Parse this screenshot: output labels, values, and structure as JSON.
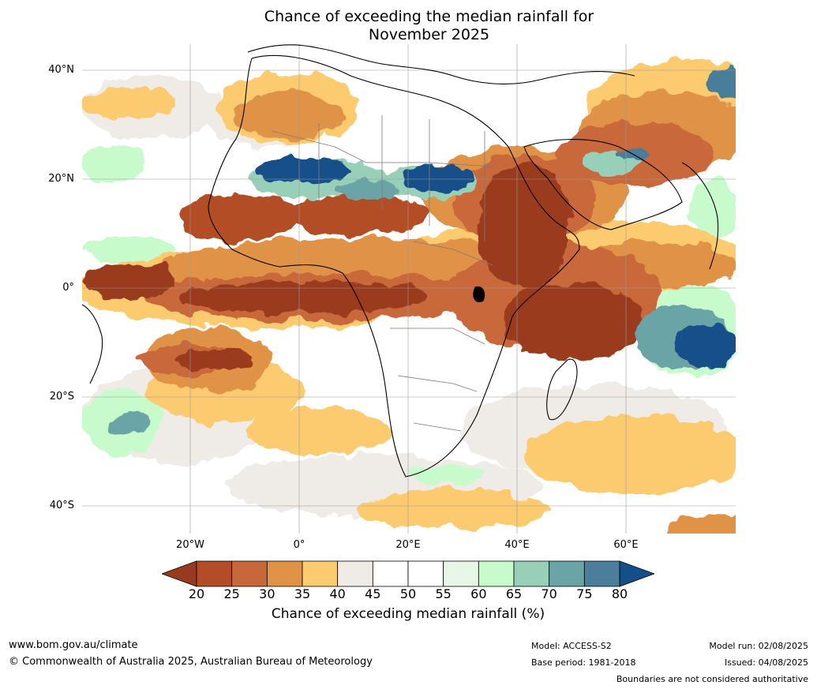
{
  "title_line1": "Chance of exceeding the median rainfall for",
  "title_line2": "November 2025",
  "lat_labels": [
    "40°N",
    "20°N",
    "0°",
    "20°S",
    "40°S"
  ],
  "lon_labels": [
    "20°W",
    "0°",
    "20°E",
    "40°E",
    "60°E"
  ],
  "colorbar": {
    "label": "Chance of exceeding median rainfall (%)",
    "ticks": [
      "20",
      "25",
      "30",
      "35",
      "40",
      "45",
      "50",
      "55",
      "60",
      "65",
      "70",
      "75",
      "80"
    ],
    "colors": [
      "#993a1f",
      "#b34d27",
      "#c8673a",
      "#e09347",
      "#fccb70",
      "#efebe6",
      "#ffffff",
      "#ffffff",
      "#e8f6e8",
      "#c8fbcc",
      "#97cfb9",
      "#6aa4a6",
      "#4a7e9b",
      "#135089"
    ],
    "low_color": "#993a1f",
    "high_color": "#135089"
  },
  "footer": {
    "url": "www.bom.gov.au/climate",
    "copyright": "© Commonwealth of Australia 2025, Australian Bureau of Meteorology",
    "model": "Model: ACCESS-S2",
    "base_period": "Base period: 1981-2018",
    "model_run": "Model run: 02/08/2025",
    "issued": "Issued: 04/08/2025",
    "disclaimer": "Boundaries are not considered authoritative"
  }
}
